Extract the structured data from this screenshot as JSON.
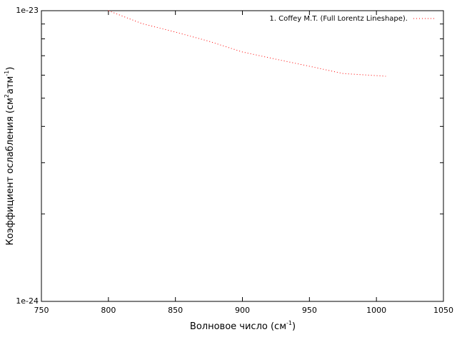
{
  "chart_data": {
    "type": "line",
    "xlabel": [
      "Волновое число (см",
      "-1",
      ")"
    ],
    "ylabel": [
      "Коэффициент ослабления (см",
      "2",
      "атм",
      "-1",
      ")"
    ],
    "x": [
      800,
      825,
      850,
      875,
      900,
      925,
      950,
      975,
      1000,
      1007
    ],
    "series": [
      {
        "name": "1. Coffey M.T. (Full Lorentz Lineshape).",
        "color": "#ff0000",
        "values": [
          1e-23,
          9.03e-24,
          8.44e-24,
          7.85e-24,
          7.21e-24,
          6.81e-24,
          6.44e-24,
          6.08e-24,
          5.98e-24,
          5.95e-24
        ]
      }
    ],
    "xlim": [
      750,
      1050
    ],
    "xticks": [
      750,
      800,
      850,
      900,
      950,
      1000,
      1050
    ],
    "ylim": [
      1e-24,
      1e-23
    ],
    "yticks": [
      1e-24,
      1e-23
    ],
    "yminorticks": [
      2e-24,
      3e-24,
      4e-24,
      5e-24,
      6e-24,
      7e-24,
      8e-24,
      9e-24
    ],
    "ylog": true,
    "legend": "top-right"
  }
}
